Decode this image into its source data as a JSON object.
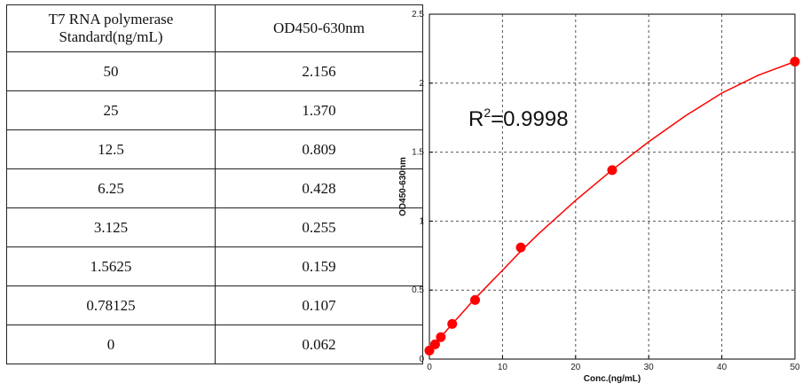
{
  "table": {
    "header": [
      "T7 RNA polymerase Standard(ng/mL)",
      "OD450-630nm"
    ],
    "header_line1": "T7 RNA polymerase",
    "header_line2": "Standard(ng/mL)",
    "rows": [
      [
        "50",
        "2.156"
      ],
      [
        "25",
        "1.370"
      ],
      [
        "12.5",
        "0.809"
      ],
      [
        "6.25",
        "0.428"
      ],
      [
        "3.125",
        "0.255"
      ],
      [
        "1.5625",
        "0.159"
      ],
      [
        "0.78125",
        "0.107"
      ],
      [
        "0",
        "0.062"
      ]
    ]
  },
  "chart_data": {
    "type": "scatter",
    "title": "",
    "xlabel": "Conc.(ng/mL)",
    "ylabel": "OD450-630nm",
    "xlim": [
      0,
      50
    ],
    "ylim": [
      0,
      2.5
    ],
    "xticks": [
      "0",
      "10",
      "20",
      "30",
      "40",
      "50"
    ],
    "yticks": [
      "0",
      "0.5",
      "1",
      "1.5",
      "2",
      "2.5"
    ],
    "grid": true,
    "annotation": {
      "base": "R",
      "sup": "2",
      "rest": "=0.9998"
    },
    "series": [
      {
        "color": "#ff0000",
        "x": [
          50,
          25,
          12.5,
          6.25,
          3.125,
          1.5625,
          0.78125,
          0
        ],
        "y": [
          2.156,
          1.37,
          0.809,
          0.428,
          0.255,
          0.159,
          0.107,
          0.062
        ]
      }
    ],
    "fit_curve": {
      "color": "#ff0000",
      "x": [
        0,
        1,
        2,
        3,
        4,
        6,
        8,
        10,
        12.5,
        15,
        20,
        25,
        30,
        35,
        40,
        45,
        50
      ],
      "y": [
        0.062,
        0.123,
        0.186,
        0.248,
        0.306,
        0.425,
        0.535,
        0.643,
        0.782,
        0.911,
        1.15,
        1.371,
        1.575,
        1.762,
        1.928,
        2.058,
        2.156
      ]
    }
  }
}
